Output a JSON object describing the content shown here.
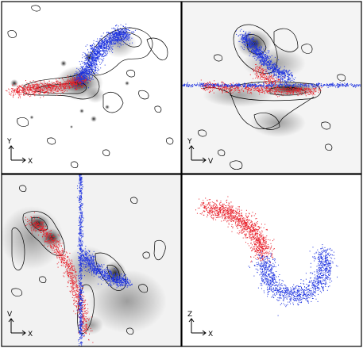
{
  "figure": {
    "panels": [
      {
        "id": "top-left",
        "axes": {
          "vertical": "Y",
          "horizontal": "X"
        },
        "view": "position",
        "has_greyscale": true
      },
      {
        "id": "top-right",
        "axes": {
          "vertical": "Y",
          "horizontal": "V"
        },
        "view": "position-velocity",
        "has_greyscale": true
      },
      {
        "id": "bottom-left",
        "axes": {
          "vertical": "V",
          "horizontal": "X"
        },
        "view": "position-velocity",
        "has_greyscale": true
      },
      {
        "id": "bottom-right",
        "axes": {
          "vertical": "Z",
          "horizontal": "X"
        },
        "view": "position",
        "has_greyscale": false
      }
    ],
    "colors": {
      "red_particles": "#e8202a",
      "blue_particles": "#1f34e0",
      "contours": "#000000",
      "background": "#ffffff",
      "border": "#000000"
    }
  }
}
